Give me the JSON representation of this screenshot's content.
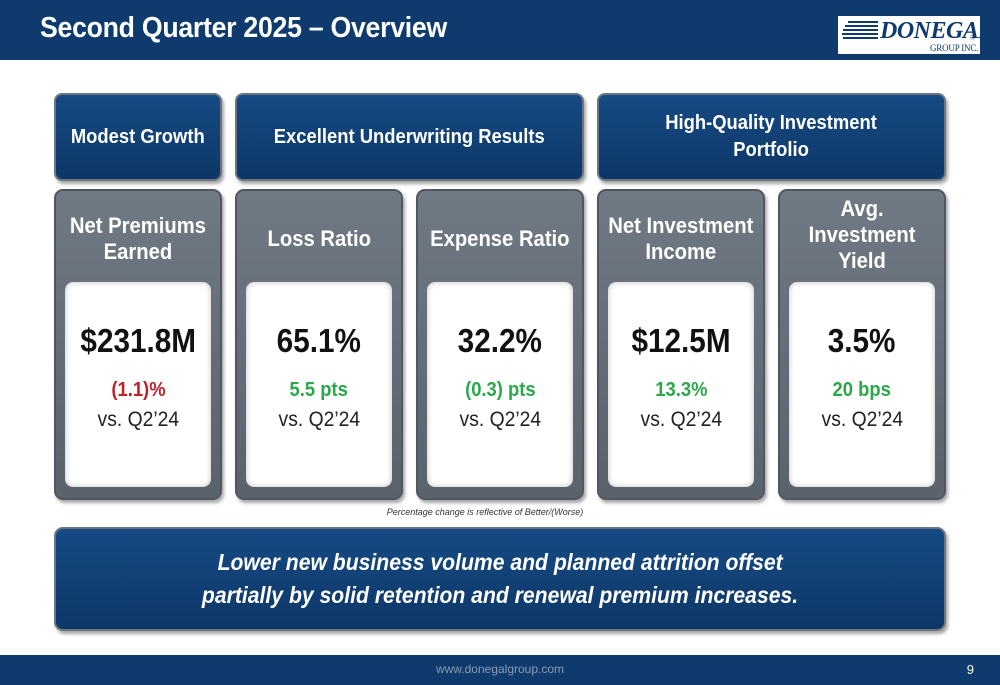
{
  "header": {
    "title": "Second Quarter 2025 – Overview",
    "logo": {
      "name": "DONEGAL",
      "reg_mark": "®",
      "subtitle": "GROUP INC."
    }
  },
  "themes": [
    {
      "label": "Modest Growth"
    },
    {
      "label": "Excellent Underwriting Results"
    },
    {
      "line1": "High-Quality Investment",
      "line2": "Portfolio"
    }
  ],
  "metrics": [
    {
      "title_line1": "Net Premiums",
      "title_line2": "Earned",
      "value": "$231.8M",
      "change": "(1.1)%",
      "comparison": "vs. Q2’24"
    },
    {
      "title_line1": "Loss Ratio",
      "value": "65.1%",
      "change": "5.5 pts",
      "comparison": "vs. Q2’24"
    },
    {
      "title_line1": "Expense Ratio",
      "value": "32.2%",
      "change": "(0.3) pts",
      "comparison": "vs. Q2’24"
    },
    {
      "title_line1": "Net Investment",
      "title_line2": "Income",
      "value": "$12.5M",
      "change": "13.3%",
      "comparison": "vs. Q2’24"
    },
    {
      "title_line1": "Avg.",
      "title_line2": "Investment",
      "title_line3": "Yield",
      "value": "3.5%",
      "change": "20 bps",
      "comparison": "vs. Q2’24"
    }
  ],
  "footnote": "Percentage change is reflective of Better/(Worse)",
  "summary": {
    "line1": "Lower new business volume and planned attrition offset",
    "line2": "partially by solid retention and renewal premium increases."
  },
  "footer": {
    "url": "www.donegalgroup.com",
    "page_number": "9"
  },
  "colors": {
    "navy": "#0e3a6e",
    "negative": "#c0202a",
    "positive": "#2aa84a",
    "card_gray": "#66707a"
  }
}
